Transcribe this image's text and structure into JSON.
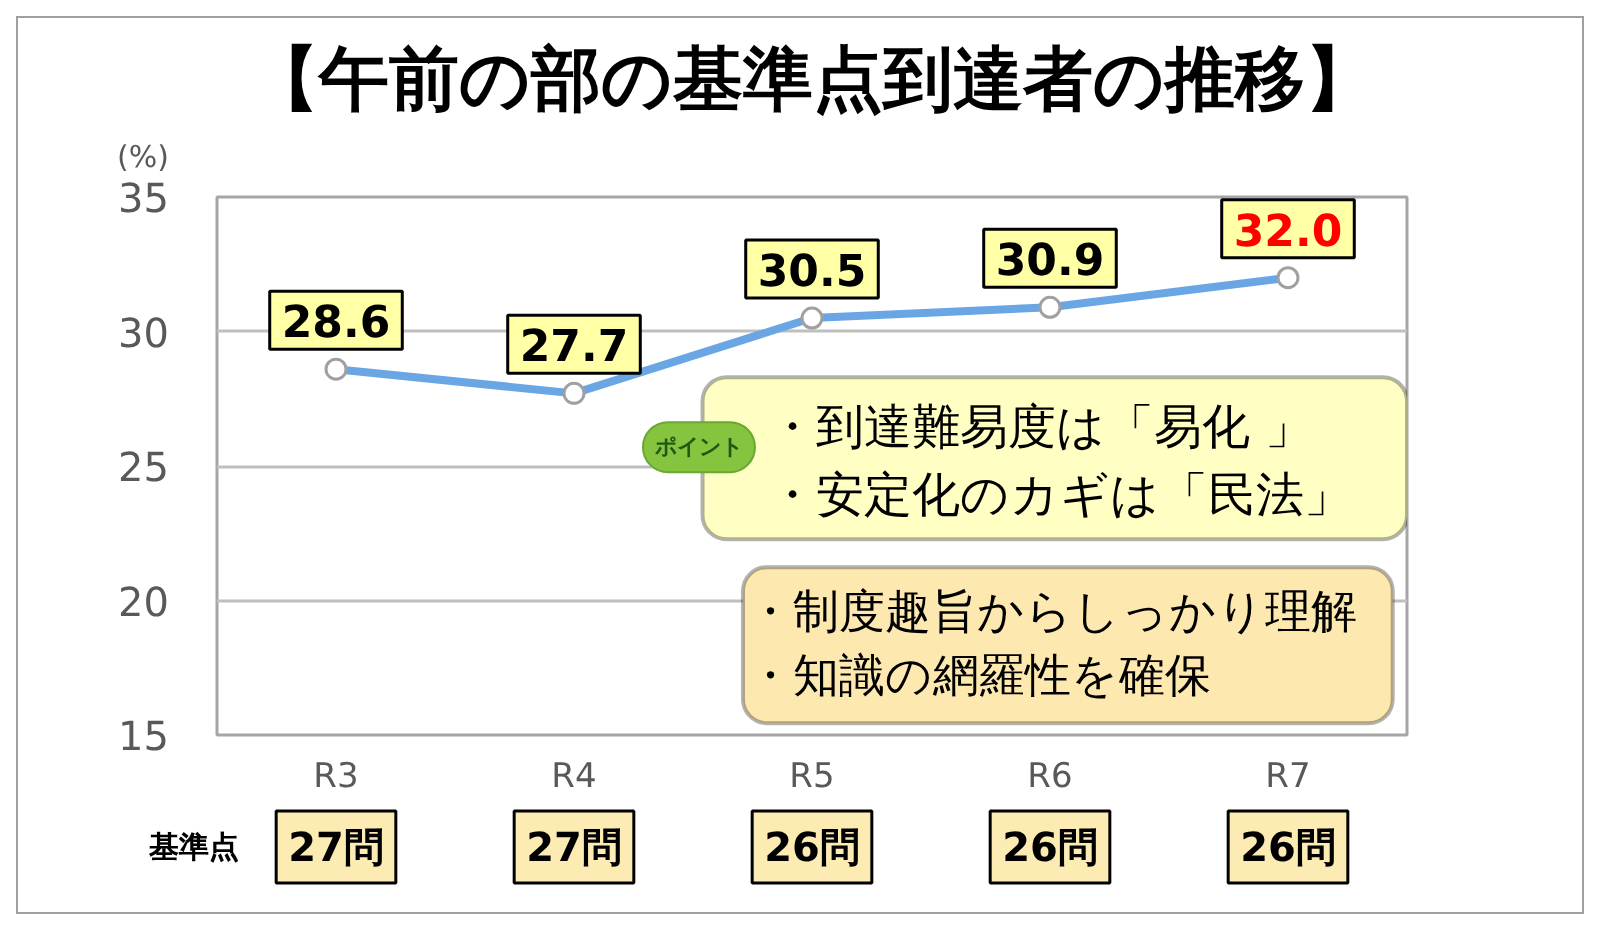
{
  "chart_data": {
    "type": "line",
    "title": "【午前の部の基準点到達者の推移】",
    "ylabel": "(%)",
    "categories": [
      "R3",
      "R4",
      "R5",
      "R6",
      "R7"
    ],
    "series": [
      {
        "color": "#6aa6e4",
        "values": [
          28.6,
          27.7,
          30.5,
          30.9,
          32.0
        ],
        "value_labels": [
          "28.6",
          "27.7",
          "30.5",
          "30.9",
          "32.0"
        ]
      }
    ],
    "ylim": [
      15,
      35
    ],
    "yticks": [
      15,
      20,
      25,
      30,
      35
    ],
    "grid": "y",
    "marker": "circle",
    "line_style": "solid",
    "annotations": [
      "・到達難易度は「易化 」",
      "・安定化のカギは「民法」",
      "ポイント",
      "・制度趣旨からしっかり理解",
      "・知識の網羅性を確保",
      "基準点",
      "27問",
      "27問",
      "26問",
      "26問",
      "26問"
    ]
  }
}
